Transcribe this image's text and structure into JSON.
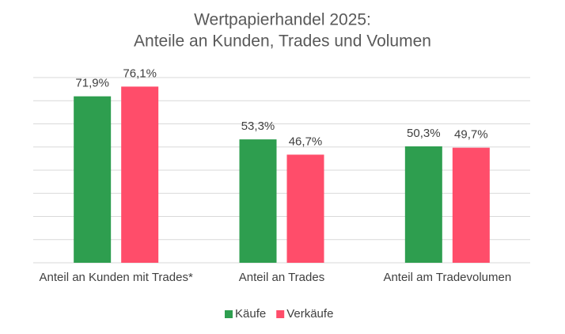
{
  "chart_data": {
    "type": "bar",
    "title": [
      "Wertpapierhandel 2025:",
      "Anteile an Kunden, Trades und Volumen"
    ],
    "categories": [
      "Anteil an Kunden mit Trades*",
      "Anteil an Trades",
      "Anteil am Tradevolumen"
    ],
    "series": [
      {
        "name": "Käufe",
        "color": "#2e9e4f",
        "values": [
          71.9,
          53.3,
          50.3
        ],
        "value_labels": [
          "71,9%",
          "53,3%",
          "50,3%"
        ]
      },
      {
        "name": "Verkäufe",
        "color": "#ff4d6a",
        "values": [
          76.1,
          46.7,
          49.7
        ],
        "value_labels": [
          "76,1%",
          "46,7%",
          "49,7%"
        ]
      }
    ],
    "ylim": [
      0,
      80
    ],
    "yticks": [
      0,
      10,
      20,
      30,
      40,
      50,
      60,
      70,
      80
    ],
    "show_ytick_labels": false,
    "grid": true,
    "legend": "bottom"
  }
}
